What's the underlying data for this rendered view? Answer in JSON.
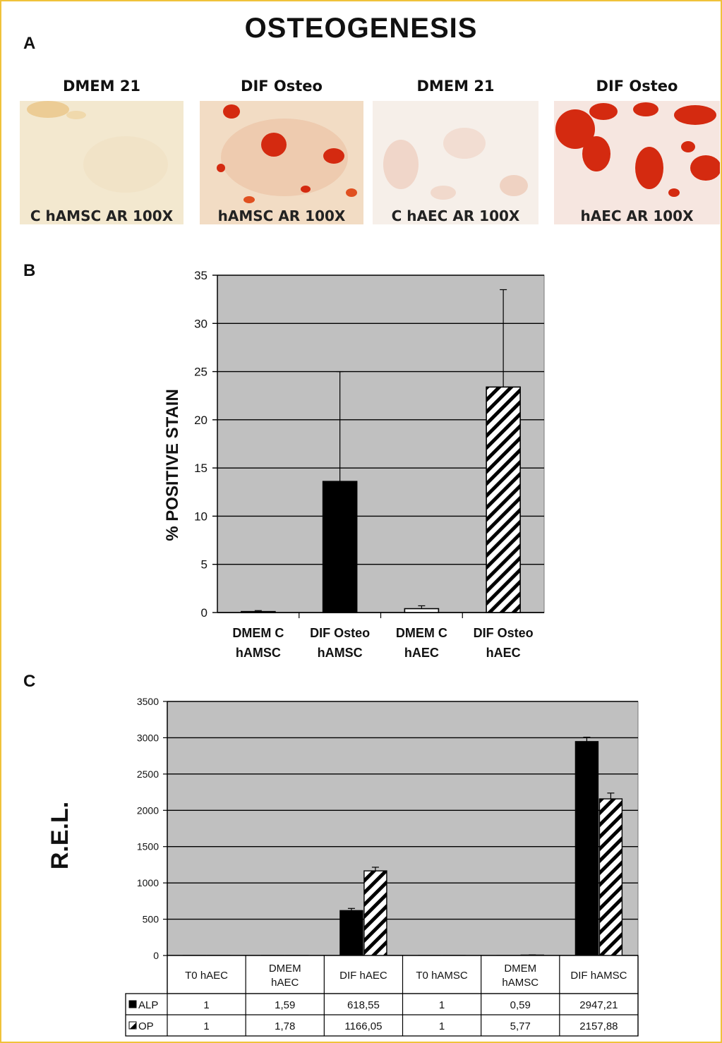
{
  "title": "OSTEOGENESIS",
  "panel_labels": {
    "a": "A",
    "b": "B",
    "c": "C"
  },
  "photos": [
    {
      "header": "DMEM 21",
      "caption": "C hAMSC AR 100X",
      "stain": "weak"
    },
    {
      "header": "DIF Osteo",
      "caption": "hAMSC AR 100X",
      "stain": "moderate"
    },
    {
      "header": "DMEM 21",
      "caption": "C hAEC AR 100X",
      "stain": "faint"
    },
    {
      "header": "DIF Osteo",
      "caption": "hAEC AR 100X",
      "stain": "strong"
    }
  ],
  "colors": {
    "plot_bg": "#c0c0c0",
    "frame": "#f0c23a",
    "stain_red": "#d42a10"
  },
  "chart_data": [
    {
      "type": "bar",
      "ylabel": "% POSITIVE STAIN",
      "ylim": [
        0,
        35
      ],
      "yticks": [
        "0",
        "5",
        "10",
        "15",
        "20",
        "25",
        "30",
        "35"
      ],
      "categories": [
        [
          "DMEM C",
          "hAMSC"
        ],
        [
          "DIF Osteo",
          "hAMSC"
        ],
        [
          "DMEM C",
          "hAEC"
        ],
        [
          "DIF Osteo",
          "hAEC"
        ]
      ],
      "values": [
        0.1,
        13.6,
        0.4,
        23.4
      ],
      "errors": [
        0.1,
        11.4,
        0.3,
        10.1
      ],
      "fills": [
        "black",
        "black",
        "white",
        "hatch"
      ],
      "grid": true
    },
    {
      "type": "bar",
      "ylabel": "R.E.L.",
      "ylim": [
        0,
        3500
      ],
      "yticks": [
        "0",
        "500",
        "1000",
        "1500",
        "2000",
        "2500",
        "3000",
        "3500"
      ],
      "categories": [
        [
          "T0 hAEC"
        ],
        [
          "DMEM",
          "hAEC"
        ],
        [
          "DIF hAEC"
        ],
        [
          "T0 hAMSC"
        ],
        [
          "DMEM",
          "hAMSC"
        ],
        [
          "DIF hAMSC"
        ]
      ],
      "series": [
        {
          "name": "ALP",
          "fill": "black",
          "values": [
            1,
            1.59,
            618.55,
            1,
            0.59,
            2947.21
          ],
          "labels": [
            "1",
            "1,59",
            "618,55",
            "1",
            "0,59",
            "2947,21"
          ],
          "errors": [
            0,
            0,
            30,
            0,
            0,
            60
          ]
        },
        {
          "name": "OP",
          "fill": "hatch",
          "values": [
            1,
            1.78,
            1166.05,
            1,
            5.77,
            2157.88
          ],
          "labels": [
            "1",
            "1,78",
            "1166,05",
            "1",
            "5,77",
            "2157,88"
          ],
          "errors": [
            0,
            0,
            50,
            0,
            3,
            80
          ]
        }
      ],
      "grid": true,
      "data_table": true
    }
  ]
}
